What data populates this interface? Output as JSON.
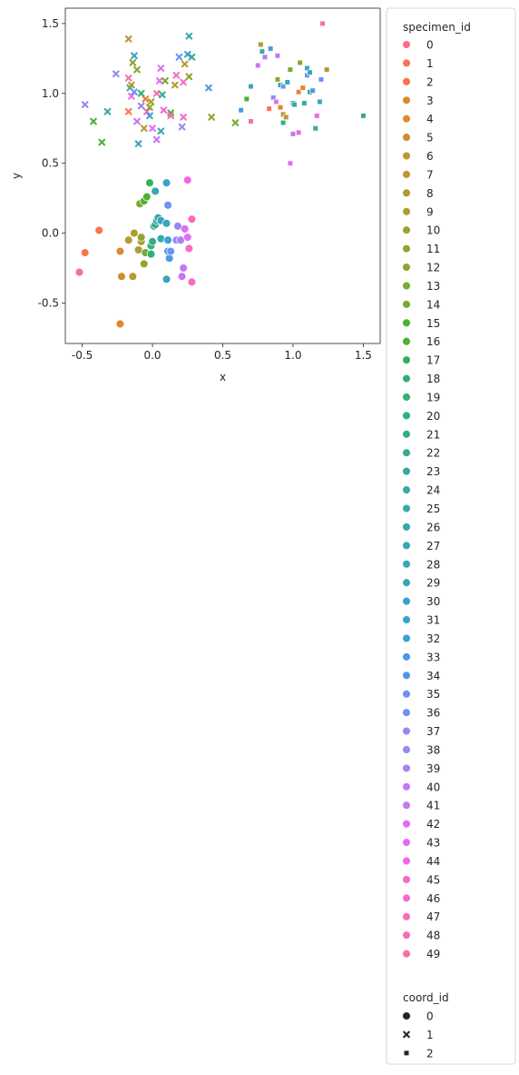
{
  "chart_data": {
    "type": "scatter",
    "xlabel": "x",
    "ylabel": "y",
    "xlim": [
      -0.62,
      1.62
    ],
    "ylim": [
      -0.79,
      1.61
    ],
    "xticks": [
      "-0.5",
      "0.0",
      "0.5",
      "1.0",
      "1.5"
    ],
    "yticks": [
      "-0.5",
      "0.0",
      "0.5",
      "1.0",
      "1.5"
    ],
    "grid": false,
    "legend_placement": "outside-right",
    "legend": {
      "hue_title": "specimen_id",
      "hue_entries": [
        "0",
        "1",
        "2",
        "3",
        "4",
        "5",
        "6",
        "7",
        "8",
        "9",
        "10",
        "11",
        "12",
        "13",
        "14",
        "15",
        "16",
        "17",
        "18",
        "19",
        "20",
        "21",
        "22",
        "23",
        "24",
        "25",
        "26",
        "27",
        "28",
        "29",
        "30",
        "31",
        "32",
        "33",
        "34",
        "35",
        "36",
        "37",
        "38",
        "39",
        "40",
        "41",
        "42",
        "43",
        "44",
        "45",
        "46",
        "47",
        "48",
        "49"
      ],
      "style_title": "coord_id",
      "style_entries": [
        {
          "label": "0",
          "marker": "circle"
        },
        {
          "label": "1",
          "marker": "x"
        },
        {
          "label": "2",
          "marker": "square"
        }
      ]
    },
    "palette": [
      "#f77189",
      "#f7754f",
      "#e0872f",
      "#cc8f32",
      "#bb9832",
      "#ae9d31",
      "#a1a131",
      "#8ea631",
      "#77ab31",
      "#4fb031",
      "#33b05a",
      "#34ae77",
      "#35ad88",
      "#36ab95",
      "#36aa9f",
      "#37a9a8",
      "#38a7b1",
      "#39a5bb",
      "#3aa3c6",
      "#3ca0d4",
      "#4b9ae5",
      "#6e93f3",
      "#9589f4",
      "#ad80f4",
      "#c677f4",
      "#e06ef4",
      "#f068e1",
      "#f56bca",
      "#f66fb3",
      "#f6719e"
    ],
    "points": [
      {
        "x": -0.52,
        "y": -0.28,
        "s": 0,
        "m": 0
      },
      {
        "x": -0.48,
        "y": -0.14,
        "s": 1,
        "m": 0
      },
      {
        "x": -0.38,
        "y": 0.02,
        "s": 2,
        "m": 0
      },
      {
        "x": -0.23,
        "y": -0.13,
        "s": 3,
        "m": 0
      },
      {
        "x": -0.23,
        "y": -0.65,
        "s": 4,
        "m": 0
      },
      {
        "x": -0.22,
        "y": -0.31,
        "s": 5,
        "m": 0
      },
      {
        "x": -0.14,
        "y": -0.31,
        "s": 6,
        "m": 0
      },
      {
        "x": -0.17,
        "y": -0.05,
        "s": 7,
        "m": 0
      },
      {
        "x": -0.1,
        "y": -0.12,
        "s": 8,
        "m": 0
      },
      {
        "x": -0.13,
        "y": 0.0,
        "s": 9,
        "m": 0
      },
      {
        "x": -0.08,
        "y": -0.06,
        "s": 10,
        "m": 0
      },
      {
        "x": -0.06,
        "y": -0.22,
        "s": 11,
        "m": 0
      },
      {
        "x": -0.08,
        "y": -0.03,
        "s": 12,
        "m": 0
      },
      {
        "x": -0.05,
        "y": -0.14,
        "s": 13,
        "m": 0
      },
      {
        "x": -0.09,
        "y": 0.21,
        "s": 14,
        "m": 0
      },
      {
        "x": -0.06,
        "y": 0.23,
        "s": 15,
        "m": 0
      },
      {
        "x": -0.04,
        "y": 0.26,
        "s": 16,
        "m": 0
      },
      {
        "x": -0.02,
        "y": 0.36,
        "s": 17,
        "m": 0
      },
      {
        "x": -0.01,
        "y": -0.15,
        "s": 18,
        "m": 0
      },
      {
        "x": -0.01,
        "y": -0.09,
        "s": 19,
        "m": 0
      },
      {
        "x": 0.0,
        "y": -0.06,
        "s": 20,
        "m": 0
      },
      {
        "x": 0.01,
        "y": 0.05,
        "s": 21,
        "m": 0
      },
      {
        "x": 0.02,
        "y": 0.06,
        "s": 22,
        "m": 0
      },
      {
        "x": 0.03,
        "y": 0.09,
        "s": 23,
        "m": 0
      },
      {
        "x": 0.05,
        "y": 0.1,
        "s": 24,
        "m": 0
      },
      {
        "x": 0.06,
        "y": -0.04,
        "s": 25,
        "m": 0
      },
      {
        "x": 0.02,
        "y": 0.3,
        "s": 26,
        "m": 0
      },
      {
        "x": 0.04,
        "y": 0.11,
        "s": 27,
        "m": 0
      },
      {
        "x": 0.06,
        "y": 0.09,
        "s": 28,
        "m": 0
      },
      {
        "x": 0.1,
        "y": -0.33,
        "s": 29,
        "m": 0
      },
      {
        "x": 0.1,
        "y": 0.36,
        "s": 30,
        "m": 0
      },
      {
        "x": 0.1,
        "y": 0.07,
        "s": 31,
        "m": 0
      },
      {
        "x": 0.11,
        "y": -0.05,
        "s": 32,
        "m": 0
      },
      {
        "x": 0.11,
        "y": -0.13,
        "s": 33,
        "m": 0
      },
      {
        "x": 0.12,
        "y": -0.18,
        "s": 34,
        "m": 0
      },
      {
        "x": 0.13,
        "y": -0.13,
        "s": 35,
        "m": 0
      },
      {
        "x": 0.11,
        "y": 0.2,
        "s": 36,
        "m": 0
      },
      {
        "x": 0.17,
        "y": -0.05,
        "s": 37,
        "m": 0
      },
      {
        "x": 0.18,
        "y": 0.05,
        "s": 38,
        "m": 0
      },
      {
        "x": 0.2,
        "y": -0.05,
        "s": 39,
        "m": 0
      },
      {
        "x": 0.21,
        "y": -0.31,
        "s": 40,
        "m": 0
      },
      {
        "x": 0.22,
        "y": -0.25,
        "s": 41,
        "m": 0
      },
      {
        "x": 0.23,
        "y": 0.03,
        "s": 42,
        "m": 0
      },
      {
        "x": 0.25,
        "y": -0.03,
        "s": 43,
        "m": 0
      },
      {
        "x": 0.25,
        "y": 0.38,
        "s": 44,
        "m": 0
      },
      {
        "x": 0.26,
        "y": -0.11,
        "s": 45,
        "m": 0
      },
      {
        "x": 0.28,
        "y": -0.35,
        "s": 46,
        "m": 0
      },
      {
        "x": 0.28,
        "y": 0.1,
        "s": 47,
        "m": 0
      },
      {
        "x": -0.48,
        "y": 0.92,
        "s": 38,
        "m": 1
      },
      {
        "x": -0.42,
        "y": 0.8,
        "s": 15,
        "m": 1
      },
      {
        "x": -0.36,
        "y": 0.65,
        "s": 16,
        "m": 1
      },
      {
        "x": -0.32,
        "y": 0.87,
        "s": 26,
        "m": 1
      },
      {
        "x": -0.26,
        "y": 1.14,
        "s": 37,
        "m": 1
      },
      {
        "x": -0.17,
        "y": 1.39,
        "s": 7,
        "m": 1
      },
      {
        "x": -0.17,
        "y": 1.11,
        "s": 48,
        "m": 1
      },
      {
        "x": -0.17,
        "y": 0.87,
        "s": 1,
        "m": 1
      },
      {
        "x": -0.16,
        "y": 1.04,
        "s": 27,
        "m": 1
      },
      {
        "x": -0.15,
        "y": 0.98,
        "s": 44,
        "m": 1
      },
      {
        "x": -0.15,
        "y": 1.06,
        "s": 9,
        "m": 1
      },
      {
        "x": -0.14,
        "y": 1.22,
        "s": 12,
        "m": 1
      },
      {
        "x": -0.13,
        "y": 1.27,
        "s": 30,
        "m": 1
      },
      {
        "x": -0.13,
        "y": 1.01,
        "s": 35,
        "m": 1
      },
      {
        "x": -0.11,
        "y": 0.8,
        "s": 40,
        "m": 1
      },
      {
        "x": -0.11,
        "y": 1.17,
        "s": 11,
        "m": 1
      },
      {
        "x": -0.1,
        "y": 0.64,
        "s": 31,
        "m": 1
      },
      {
        "x": -0.08,
        "y": 0.91,
        "s": 38,
        "m": 1
      },
      {
        "x": -0.08,
        "y": 1.0,
        "s": 18,
        "m": 1
      },
      {
        "x": -0.06,
        "y": 0.75,
        "s": 9,
        "m": 1
      },
      {
        "x": -0.05,
        "y": 0.96,
        "s": 4,
        "m": 1
      },
      {
        "x": -0.04,
        "y": 0.87,
        "s": 45,
        "m": 1
      },
      {
        "x": -0.02,
        "y": 0.84,
        "s": 32,
        "m": 1
      },
      {
        "x": -0.02,
        "y": 0.9,
        "s": 12,
        "m": 1
      },
      {
        "x": -0.01,
        "y": 0.94,
        "s": 8,
        "m": 1
      },
      {
        "x": 0.0,
        "y": 0.75,
        "s": 42,
        "m": 1
      },
      {
        "x": 0.03,
        "y": 1.0,
        "s": 47,
        "m": 1
      },
      {
        "x": 0.03,
        "y": 0.67,
        "s": 41,
        "m": 1
      },
      {
        "x": 0.05,
        "y": 1.09,
        "s": 42,
        "m": 1
      },
      {
        "x": 0.06,
        "y": 1.18,
        "s": 43,
        "m": 1
      },
      {
        "x": 0.06,
        "y": 0.73,
        "s": 27,
        "m": 1
      },
      {
        "x": 0.07,
        "y": 0.99,
        "s": 22,
        "m": 1
      },
      {
        "x": 0.08,
        "y": 0.88,
        "s": 44,
        "m": 1
      },
      {
        "x": 0.09,
        "y": 1.09,
        "s": 14,
        "m": 1
      },
      {
        "x": 0.13,
        "y": 0.86,
        "s": 15,
        "m": 1
      },
      {
        "x": 0.13,
        "y": 0.84,
        "s": 48,
        "m": 1
      },
      {
        "x": 0.16,
        "y": 1.06,
        "s": 6,
        "m": 1
      },
      {
        "x": 0.17,
        "y": 1.13,
        "s": 45,
        "m": 1
      },
      {
        "x": 0.19,
        "y": 1.26,
        "s": 35,
        "m": 1
      },
      {
        "x": 0.21,
        "y": 0.76,
        "s": 37,
        "m": 1
      },
      {
        "x": 0.22,
        "y": 0.83,
        "s": 46,
        "m": 1
      },
      {
        "x": 0.22,
        "y": 1.08,
        "s": 46,
        "m": 1
      },
      {
        "x": 0.23,
        "y": 1.21,
        "s": 7,
        "m": 1
      },
      {
        "x": 0.25,
        "y": 1.28,
        "s": 32,
        "m": 1
      },
      {
        "x": 0.26,
        "y": 1.41,
        "s": 24,
        "m": 1
      },
      {
        "x": 0.26,
        "y": 1.12,
        "s": 12,
        "m": 1
      },
      {
        "x": 0.28,
        "y": 1.26,
        "s": 23,
        "m": 1
      },
      {
        "x": 0.4,
        "y": 1.04,
        "s": 33,
        "m": 1
      },
      {
        "x": 0.42,
        "y": 0.83,
        "s": 11,
        "m": 1
      },
      {
        "x": 0.59,
        "y": 0.79,
        "s": 13,
        "m": 1
      },
      {
        "x": 1.21,
        "y": 1.5,
        "s": 48,
        "m": 2
      },
      {
        "x": 0.77,
        "y": 1.35,
        "s": 9,
        "m": 2
      },
      {
        "x": 0.78,
        "y": 1.3,
        "s": 26,
        "m": 2
      },
      {
        "x": 0.84,
        "y": 1.32,
        "s": 34,
        "m": 2
      },
      {
        "x": 0.75,
        "y": 1.2,
        "s": 40,
        "m": 2
      },
      {
        "x": 0.8,
        "y": 1.26,
        "s": 39,
        "m": 2
      },
      {
        "x": 0.89,
        "y": 1.27,
        "s": 40,
        "m": 2
      },
      {
        "x": 1.05,
        "y": 1.22,
        "s": 12,
        "m": 2
      },
      {
        "x": 1.1,
        "y": 1.18,
        "s": 30,
        "m": 2
      },
      {
        "x": 0.67,
        "y": 0.96,
        "s": 16,
        "m": 2
      },
      {
        "x": 0.7,
        "y": 1.05,
        "s": 31,
        "m": 2
      },
      {
        "x": 0.63,
        "y": 0.88,
        "s": 34,
        "m": 2
      },
      {
        "x": 0.7,
        "y": 0.8,
        "s": 49,
        "m": 2
      },
      {
        "x": 0.83,
        "y": 0.89,
        "s": 2,
        "m": 2
      },
      {
        "x": 0.86,
        "y": 0.97,
        "s": 37,
        "m": 2
      },
      {
        "x": 0.88,
        "y": 0.94,
        "s": 43,
        "m": 2
      },
      {
        "x": 0.89,
        "y": 1.1,
        "s": 12,
        "m": 2
      },
      {
        "x": 0.91,
        "y": 1.06,
        "s": 23,
        "m": 2
      },
      {
        "x": 0.93,
        "y": 1.05,
        "s": 36,
        "m": 2
      },
      {
        "x": 0.91,
        "y": 0.9,
        "s": 3,
        "m": 2
      },
      {
        "x": 0.93,
        "y": 0.85,
        "s": 6,
        "m": 2
      },
      {
        "x": 0.93,
        "y": 0.79,
        "s": 20,
        "m": 2
      },
      {
        "x": 0.95,
        "y": 0.83,
        "s": 9,
        "m": 2
      },
      {
        "x": 0.96,
        "y": 1.08,
        "s": 28,
        "m": 2
      },
      {
        "x": 0.98,
        "y": 1.17,
        "s": 14,
        "m": 2
      },
      {
        "x": 1.0,
        "y": 0.93,
        "s": 33,
        "m": 2
      },
      {
        "x": 1.01,
        "y": 0.92,
        "s": 23,
        "m": 2
      },
      {
        "x": 1.04,
        "y": 1.01,
        "s": 2,
        "m": 2
      },
      {
        "x": 1.07,
        "y": 1.04,
        "s": 3,
        "m": 2
      },
      {
        "x": 1.08,
        "y": 0.93,
        "s": 24,
        "m": 2
      },
      {
        "x": 1.1,
        "y": 1.13,
        "s": 35,
        "m": 2
      },
      {
        "x": 1.12,
        "y": 1.01,
        "s": 25,
        "m": 2
      },
      {
        "x": 1.12,
        "y": 1.15,
        "s": 28,
        "m": 2
      },
      {
        "x": 1.14,
        "y": 1.02,
        "s": 33,
        "m": 2
      },
      {
        "x": 1.16,
        "y": 0.75,
        "s": 22,
        "m": 2
      },
      {
        "x": 1.17,
        "y": 0.84,
        "s": 44,
        "m": 2
      },
      {
        "x": 1.19,
        "y": 0.94,
        "s": 31,
        "m": 2
      },
      {
        "x": 1.2,
        "y": 1.1,
        "s": 36,
        "m": 2
      },
      {
        "x": 1.24,
        "y": 1.17,
        "s": 10,
        "m": 2
      },
      {
        "x": 1.5,
        "y": 0.84,
        "s": 19,
        "m": 2
      },
      {
        "x": 1.0,
        "y": 0.71,
        "s": 41,
        "m": 2
      },
      {
        "x": 1.04,
        "y": 0.72,
        "s": 44,
        "m": 2
      },
      {
        "x": 0.98,
        "y": 0.5,
        "s": 42,
        "m": 2
      }
    ]
  }
}
